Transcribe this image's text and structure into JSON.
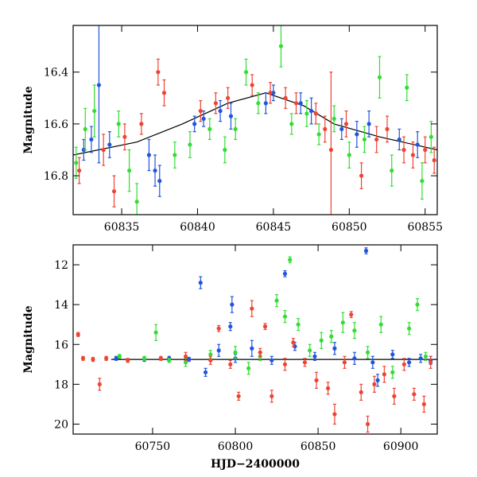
{
  "chart_data": [
    {
      "type": "scatter",
      "ylabel": "Magnitude",
      "xlabel": "",
      "xlim": [
        60831.8,
        60855.8
      ],
      "ylim": [
        16.95,
        16.22
      ],
      "y_inverted": true,
      "grid": false,
      "xticks": [
        60835,
        60840,
        60845,
        60850,
        60855
      ],
      "yticks": [
        16.4,
        16.6,
        16.8
      ],
      "xtick_labels": [
        "60835",
        "60840",
        "60845",
        "60850",
        "60855"
      ],
      "ytick_labels": [
        "16.4",
        "16.6",
        "16.8"
      ],
      "fit_curve": {
        "x": [
          60831.8,
          60836,
          60839,
          60842,
          60844.5,
          60847,
          60849,
          60852,
          60855.8
        ],
        "y": [
          16.72,
          16.67,
          16.6,
          16.52,
          16.48,
          16.53,
          16.6,
          16.65,
          16.7
        ]
      },
      "series": [
        {
          "color": "#2255dd",
          "points": [
            [
              60832.5,
              16.7,
              0.04
            ],
            [
              60833.0,
              16.66,
              0.05
            ],
            [
              60833.5,
              16.45,
              0.3
            ],
            [
              60834.2,
              16.68,
              0.05
            ],
            [
              60836.8,
              16.72,
              0.06
            ],
            [
              60837.2,
              16.78,
              0.06
            ],
            [
              60837.5,
              16.82,
              0.06
            ],
            [
              60839.8,
              16.6,
              0.03
            ],
            [
              60840.4,
              16.58,
              0.03
            ],
            [
              60841.5,
              16.55,
              0.04
            ],
            [
              60842.2,
              16.57,
              0.05
            ],
            [
              60844.5,
              16.52,
              0.04
            ],
            [
              60845.0,
              16.48,
              0.03
            ],
            [
              60846.8,
              16.52,
              0.04
            ],
            [
              60847.5,
              16.55,
              0.05
            ],
            [
              60849.5,
              16.62,
              0.04
            ],
            [
              60850.5,
              16.64,
              0.05
            ],
            [
              60851.3,
              16.6,
              0.05
            ],
            [
              60853.3,
              16.66,
              0.04
            ],
            [
              60854.5,
              16.68,
              0.05
            ]
          ]
        },
        {
          "color": "#33dd33",
          "points": [
            [
              60832.0,
              16.75,
              0.06
            ],
            [
              60832.6,
              16.62,
              0.08
            ],
            [
              60833.2,
              16.55,
              0.1
            ],
            [
              60834.8,
              16.6,
              0.05
            ],
            [
              60835.5,
              16.78,
              0.08
            ],
            [
              60836.0,
              16.9,
              0.07
            ],
            [
              60838.5,
              16.72,
              0.05
            ],
            [
              60839.5,
              16.68,
              0.05
            ],
            [
              60840.8,
              16.62,
              0.04
            ],
            [
              60841.8,
              16.7,
              0.05
            ],
            [
              60842.5,
              16.62,
              0.04
            ],
            [
              60843.2,
              16.4,
              0.05
            ],
            [
              60844.0,
              16.52,
              0.04
            ],
            [
              60845.5,
              16.3,
              0.08
            ],
            [
              60846.2,
              16.6,
              0.04
            ],
            [
              60847.2,
              16.56,
              0.05
            ],
            [
              60848.0,
              16.64,
              0.04
            ],
            [
              60849.0,
              16.58,
              0.05
            ],
            [
              60850.0,
              16.72,
              0.05
            ],
            [
              60851.0,
              16.66,
              0.05
            ],
            [
              60852.0,
              16.42,
              0.08
            ],
            [
              60852.8,
              16.78,
              0.06
            ],
            [
              60853.8,
              16.46,
              0.05
            ],
            [
              60854.8,
              16.82,
              0.07
            ],
            [
              60855.4,
              16.65,
              0.06
            ]
          ]
        },
        {
          "color": "#ee4433",
          "points": [
            [
              60832.2,
              16.78,
              0.05
            ],
            [
              60833.8,
              16.7,
              0.06
            ],
            [
              60834.5,
              16.86,
              0.06
            ],
            [
              60835.2,
              16.65,
              0.05
            ],
            [
              60836.3,
              16.6,
              0.04
            ],
            [
              60837.4,
              16.4,
              0.05
            ],
            [
              60837.8,
              16.48,
              0.05
            ],
            [
              60840.2,
              16.55,
              0.04
            ],
            [
              60841.2,
              16.52,
              0.04
            ],
            [
              60842.0,
              16.5,
              0.04
            ],
            [
              60843.6,
              16.45,
              0.04
            ],
            [
              60844.8,
              16.48,
              0.04
            ],
            [
              60845.8,
              16.5,
              0.04
            ],
            [
              60846.5,
              16.52,
              0.04
            ],
            [
              60847.8,
              16.56,
              0.04
            ],
            [
              60848.4,
              16.62,
              0.05
            ],
            [
              60848.8,
              16.7,
              0.3
            ],
            [
              60849.8,
              16.6,
              0.05
            ],
            [
              60850.8,
              16.8,
              0.05
            ],
            [
              60851.8,
              16.66,
              0.05
            ],
            [
              60852.5,
              16.62,
              0.05
            ],
            [
              60853.6,
              16.7,
              0.05
            ],
            [
              60854.2,
              16.72,
              0.05
            ],
            [
              60855.0,
              16.7,
              0.05
            ],
            [
              60855.6,
              16.74,
              0.05
            ]
          ]
        }
      ]
    },
    {
      "type": "scatter",
      "ylabel": "Magnitude",
      "xlabel": "HJD−2400000",
      "xlim": [
        60702,
        60922
      ],
      "ylim": [
        20.5,
        11.0
      ],
      "y_inverted": true,
      "grid": false,
      "xticks": [
        60750,
        60800,
        60850,
        60900
      ],
      "yticks": [
        12,
        14,
        16,
        18,
        20
      ],
      "xtick_labels": [
        "60750",
        "60800",
        "60850",
        "60900"
      ],
      "ytick_labels": [
        "12",
        "14",
        "16",
        "18",
        "20"
      ],
      "fit_curve": {
        "x": [
          60725,
          60922
        ],
        "y": [
          16.75,
          16.75
        ]
      },
      "series": [
        {
          "color": "#2255dd",
          "points": [
            [
              60728,
              16.7,
              0.1
            ],
            [
              60745,
              16.75,
              0.1
            ],
            [
              60760,
              16.7,
              0.1
            ],
            [
              60772,
              16.75,
              0.1
            ],
            [
              60779,
              12.9,
              0.3
            ],
            [
              60782,
              17.4,
              0.2
            ],
            [
              60790,
              16.3,
              0.3
            ],
            [
              60797,
              15.1,
              0.2
            ],
            [
              60798,
              14.0,
              0.4
            ],
            [
              60800,
              16.7,
              0.2
            ],
            [
              60810,
              16.2,
              0.4
            ],
            [
              60822,
              16.8,
              0.2
            ],
            [
              60830,
              12.45,
              0.15
            ],
            [
              60836,
              16.1,
              0.2
            ],
            [
              60848,
              16.6,
              0.2
            ],
            [
              60860,
              16.2,
              0.3
            ],
            [
              60872,
              16.7,
              0.3
            ],
            [
              60879,
              11.3,
              0.15
            ],
            [
              60883,
              16.9,
              0.3
            ],
            [
              60886,
              17.8,
              0.3
            ],
            [
              60895,
              16.5,
              0.2
            ],
            [
              60905,
              16.9,
              0.2
            ],
            [
              60912,
              16.7,
              0.2
            ],
            [
              60918,
              16.8,
              0.2
            ]
          ]
        },
        {
          "color": "#33dd33",
          "points": [
            [
              60730,
              16.6,
              0.1
            ],
            [
              60745,
              16.7,
              0.1
            ],
            [
              60752,
              15.4,
              0.4
            ],
            [
              60760,
              16.8,
              0.1
            ],
            [
              60770,
              16.9,
              0.2
            ],
            [
              60785,
              16.5,
              0.2
            ],
            [
              60800,
              16.4,
              0.3
            ],
            [
              60808,
              17.2,
              0.3
            ],
            [
              60815,
              16.6,
              0.2
            ],
            [
              60825,
              13.8,
              0.3
            ],
            [
              60830,
              14.6,
              0.3
            ],
            [
              60833,
              11.75,
              0.15
            ],
            [
              60838,
              15.0,
              0.3
            ],
            [
              60845,
              16.3,
              0.3
            ],
            [
              60852,
              15.8,
              0.4
            ],
            [
              60858,
              15.6,
              0.3
            ],
            [
              60865,
              14.9,
              0.5
            ],
            [
              60872,
              15.3,
              0.4
            ],
            [
              60880,
              16.4,
              0.3
            ],
            [
              60888,
              15.0,
              0.4
            ],
            [
              60895,
              17.4,
              0.3
            ],
            [
              60905,
              15.2,
              0.3
            ],
            [
              60910,
              14.0,
              0.3
            ],
            [
              60915,
              16.6,
              0.2
            ]
          ]
        },
        {
          "color": "#ee4433",
          "points": [
            [
              60705,
              15.5,
              0.1
            ],
            [
              60708,
              16.7,
              0.1
            ],
            [
              60714,
              16.75,
              0.1
            ],
            [
              60718,
              18.0,
              0.3
            ],
            [
              60722,
              16.7,
              0.1
            ],
            [
              60735,
              16.8,
              0.1
            ],
            [
              60755,
              16.7,
              0.1
            ],
            [
              60770,
              16.6,
              0.2
            ],
            [
              60785,
              16.8,
              0.2
            ],
            [
              60790,
              15.2,
              0.15
            ],
            [
              60797,
              17.0,
              0.2
            ],
            [
              60802,
              18.6,
              0.2
            ],
            [
              60810,
              14.2,
              0.4
            ],
            [
              60815,
              16.4,
              0.2
            ],
            [
              60818,
              15.1,
              0.15
            ],
            [
              60822,
              18.6,
              0.3
            ],
            [
              60830,
              17.0,
              0.3
            ],
            [
              60835,
              15.9,
              0.2
            ],
            [
              60842,
              16.9,
              0.2
            ],
            [
              60849,
              17.8,
              0.4
            ],
            [
              60856,
              18.2,
              0.3
            ],
            [
              60860,
              19.5,
              0.5
            ],
            [
              60866,
              16.9,
              0.3
            ],
            [
              60870,
              14.5,
              0.15
            ],
            [
              60876,
              18.4,
              0.4
            ],
            [
              60880,
              20.0,
              0.4
            ],
            [
              60884,
              18.0,
              0.4
            ],
            [
              60890,
              17.5,
              0.4
            ],
            [
              60896,
              18.6,
              0.4
            ],
            [
              60902,
              17.0,
              0.3
            ],
            [
              60908,
              18.5,
              0.3
            ],
            [
              60914,
              19.0,
              0.4
            ],
            [
              60918,
              16.9,
              0.3
            ]
          ]
        }
      ]
    }
  ]
}
